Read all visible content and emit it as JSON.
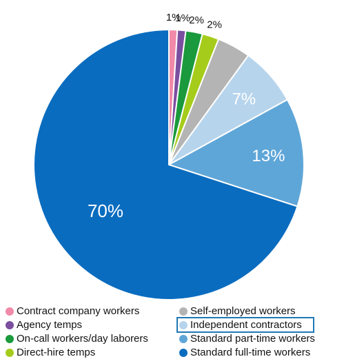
{
  "chart_data": {
    "type": "pie",
    "slices": [
      {
        "label": "Contract company workers",
        "value": 1,
        "display": "1%",
        "color": "#f08aa8"
      },
      {
        "label": "Agency temps",
        "value": 1,
        "display": "1%",
        "color": "#7b4fa0"
      },
      {
        "label": "On-call workers/day laborers",
        "value": 2,
        "display": "2%",
        "color": "#1a9a3c"
      },
      {
        "label": "Direct-hire temps",
        "value": 2,
        "display": "2%",
        "color": "#a6cc1b"
      },
      {
        "label": "Self-employed workers",
        "value": 4,
        "display": "",
        "color": "#b4b4b4"
      },
      {
        "label": "Independent contractors",
        "value": 7,
        "display": "7%",
        "color": "#b6d4ec"
      },
      {
        "label": "Standard part-time workers",
        "value": 13,
        "display": "13%",
        "color": "#5fa6d8"
      },
      {
        "label": "Standard full-time workers",
        "value": 70,
        "display": "70%",
        "color": "#0a6cbf"
      }
    ],
    "highlighted_legend_entry": "Independent contractors"
  },
  "legend": {
    "col1": [
      {
        "label": "Contract company workers",
        "color": "#f08aa8"
      },
      {
        "label": "Agency temps",
        "color": "#7b4fa0"
      },
      {
        "label": "On-call workers/day laborers",
        "color": "#1a9a3c"
      },
      {
        "label": "Direct-hire temps",
        "color": "#a6cc1b"
      }
    ],
    "col2": [
      {
        "label": "Self-employed workers",
        "color": "#b4b4b4"
      },
      {
        "label": "Independent contractors",
        "color": "#b6d4ec"
      },
      {
        "label": "Standard part-time workers",
        "color": "#5fa6d8"
      },
      {
        "label": "Standard full-time workers",
        "color": "#0a6cbf"
      }
    ]
  }
}
